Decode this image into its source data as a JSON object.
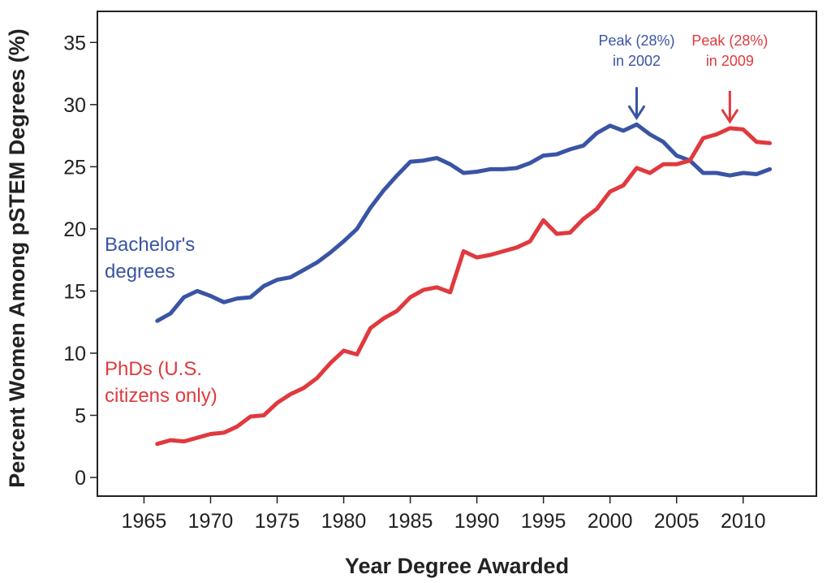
{
  "chart_data": {
    "type": "line",
    "xlabel": "Year Degree Awarded",
    "ylabel": "Percent Women Among pSTEM Degrees (%)",
    "xlim": [
      1961.5,
      2015.5
    ],
    "ylim": [
      -1.5,
      37.5
    ],
    "xticks": [
      1965,
      1970,
      1975,
      1980,
      1985,
      1990,
      1995,
      2000,
      2005,
      2010
    ],
    "yticks": [
      0,
      5,
      10,
      15,
      20,
      25,
      30,
      35
    ],
    "grid": false,
    "series": [
      {
        "name": "Bachelor's degrees",
        "label_lines": [
          "Bachelor's",
          "degrees"
        ],
        "color": "#3a54a4",
        "points": [
          [
            1966,
            12.6
          ],
          [
            1967,
            13.2
          ],
          [
            1968,
            14.5
          ],
          [
            1969,
            15.0
          ],
          [
            1970,
            14.6
          ],
          [
            1971,
            14.1
          ],
          [
            1972,
            14.4
          ],
          [
            1973,
            14.5
          ],
          [
            1974,
            15.4
          ],
          [
            1975,
            15.9
          ],
          [
            1976,
            16.1
          ],
          [
            1977,
            16.7
          ],
          [
            1978,
            17.3
          ],
          [
            1979,
            18.1
          ],
          [
            1980,
            19.0
          ],
          [
            1981,
            20.0
          ],
          [
            1982,
            21.7
          ],
          [
            1983,
            23.1
          ],
          [
            1984,
            24.3
          ],
          [
            1985,
            25.4
          ],
          [
            1986,
            25.5
          ],
          [
            1987,
            25.7
          ],
          [
            1988,
            25.2
          ],
          [
            1989,
            24.5
          ],
          [
            1990,
            24.6
          ],
          [
            1991,
            24.8
          ],
          [
            1992,
            24.8
          ],
          [
            1993,
            24.9
          ],
          [
            1994,
            25.3
          ],
          [
            1995,
            25.9
          ],
          [
            1996,
            26.0
          ],
          [
            1997,
            26.4
          ],
          [
            1998,
            26.7
          ],
          [
            1999,
            27.7
          ],
          [
            2000,
            28.3
          ],
          [
            2001,
            27.9
          ],
          [
            2002,
            28.4
          ],
          [
            2003,
            27.6
          ],
          [
            2004,
            27.0
          ],
          [
            2005,
            25.9
          ],
          [
            2006,
            25.5
          ],
          [
            2007,
            24.5
          ],
          [
            2008,
            24.5
          ],
          [
            2009,
            24.3
          ],
          [
            2010,
            24.5
          ],
          [
            2011,
            24.4
          ],
          [
            2012,
            24.8
          ]
        ]
      },
      {
        "name": "PhDs (U.S. citizens only)",
        "label_lines": [
          "PhDs (U.S.",
          "citizens only)"
        ],
        "color": "#e0393e",
        "points": [
          [
            1966,
            2.7
          ],
          [
            1967,
            3.0
          ],
          [
            1968,
            2.9
          ],
          [
            1969,
            3.2
          ],
          [
            1970,
            3.5
          ],
          [
            1971,
            3.6
          ],
          [
            1972,
            4.1
          ],
          [
            1973,
            4.9
          ],
          [
            1974,
            5.0
          ],
          [
            1975,
            6.0
          ],
          [
            1976,
            6.7
          ],
          [
            1977,
            7.2
          ],
          [
            1978,
            8.0
          ],
          [
            1979,
            9.2
          ],
          [
            1980,
            10.2
          ],
          [
            1981,
            9.9
          ],
          [
            1982,
            12.0
          ],
          [
            1983,
            12.8
          ],
          [
            1984,
            13.4
          ],
          [
            1985,
            14.5
          ],
          [
            1986,
            15.1
          ],
          [
            1987,
            15.3
          ],
          [
            1988,
            14.9
          ],
          [
            1989,
            18.2
          ],
          [
            1990,
            17.7
          ],
          [
            1991,
            17.9
          ],
          [
            1992,
            18.2
          ],
          [
            1993,
            18.5
          ],
          [
            1994,
            19.0
          ],
          [
            1995,
            20.7
          ],
          [
            1996,
            19.6
          ],
          [
            1997,
            19.7
          ],
          [
            1998,
            20.8
          ],
          [
            1999,
            21.6
          ],
          [
            2000,
            23.0
          ],
          [
            2001,
            23.5
          ],
          [
            2002,
            24.9
          ],
          [
            2003,
            24.5
          ],
          [
            2004,
            25.2
          ],
          [
            2005,
            25.2
          ],
          [
            2006,
            25.5
          ],
          [
            2007,
            27.3
          ],
          [
            2008,
            27.6
          ],
          [
            2009,
            28.1
          ],
          [
            2010,
            28.0
          ],
          [
            2011,
            27.0
          ],
          [
            2012,
            26.9
          ]
        ]
      }
    ],
    "annotations": [
      {
        "lines": [
          "Peak (28%)",
          "in 2002"
        ],
        "color": "#3a54a4",
        "arrow_to": [
          2002,
          28.4
        ]
      },
      {
        "lines": [
          "Peak (28%)",
          "in 2009"
        ],
        "color": "#e0393e",
        "arrow_to": [
          2009,
          28.1
        ]
      }
    ]
  }
}
